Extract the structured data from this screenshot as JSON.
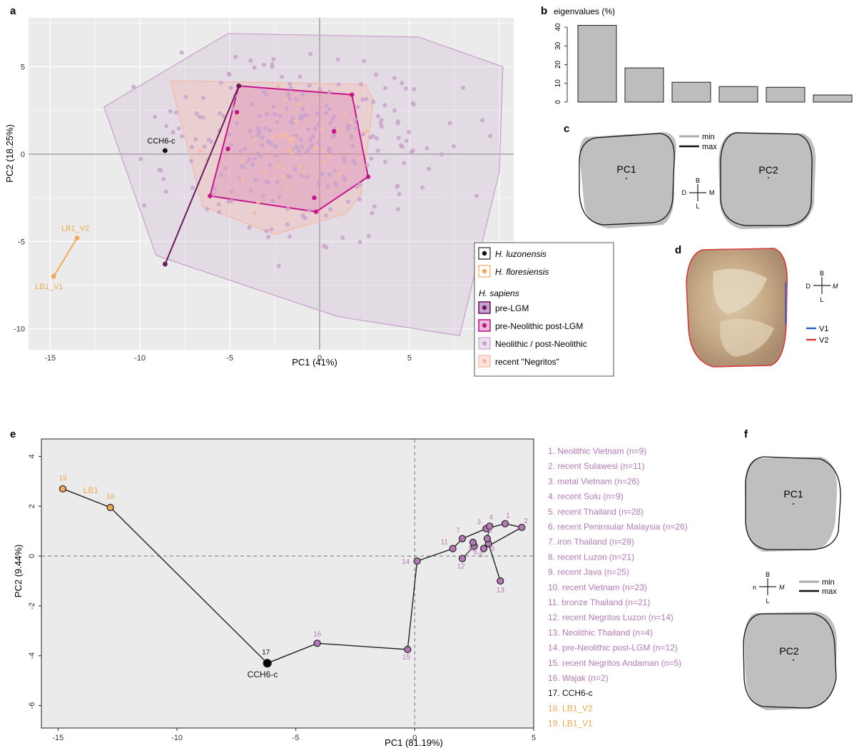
{
  "panel_letters": {
    "a": "a",
    "b": "b",
    "c": "c",
    "d": "d",
    "e": "e",
    "f": "f"
  },
  "colors": {
    "luzonensis": "#111111",
    "floresiensis": "#f0a955",
    "pre_lgm": "#6b1b5e",
    "post_lgm": "#c8158c",
    "neolithic": "#c9a3cd",
    "negritos": "#f3b9a9",
    "e_purple": "#b57ab5",
    "v1": "#2c5fc9",
    "v2": "#d63a3a"
  },
  "chart_data": [
    {
      "id": "a",
      "type": "scatter",
      "xlabel": "PC1 (41%)",
      "ylabel": "PC2 (18.25%)",
      "xticks": [
        -15,
        -10,
        -5,
        0,
        5
      ],
      "xtick_labels": [
        "-15",
        "-10",
        "-5",
        "0",
        "5"
      ],
      "yticks": [
        -10,
        -5,
        0,
        5
      ],
      "ytick_labels": [
        "-10",
        "-5",
        "0",
        "5"
      ],
      "xlim": [
        -16.2,
        10.8
      ],
      "ylim": [
        -11.2,
        7.8
      ],
      "grid": true,
      "legend": {
        "position": "bottom-right",
        "entries": [
          "H. luzonensis",
          "H. floresiensis"
        ],
        "group_title": "H. sapiens",
        "group_entries": [
          "pre-LGM",
          "pre-Neolithic post-LGM",
          "Neolithic / post-Neolithic",
          "recent \"Negritos\""
        ]
      },
      "labels": {
        "cch6": "CCH6-c",
        "lb1_v2": "LB1_V2",
        "lb1_v1": "LB1_V1"
      },
      "points": {
        "luzonensis": [
          [
            -8.6,
            0.2
          ]
        ],
        "floresiensis": [
          [
            -13.5,
            -4.8
          ],
          [
            -14.8,
            -7.0
          ]
        ],
        "pre_lgm": [
          [
            -8.6,
            -6.3
          ],
          [
            -4.5,
            3.9
          ]
        ],
        "post_lgm": [
          [
            -4.5,
            3.9
          ],
          [
            1.8,
            3.4
          ],
          [
            2.7,
            -1.3
          ],
          [
            -0.2,
            -3.3
          ],
          [
            -6.1,
            -2.4
          ],
          [
            0.8,
            1.3
          ],
          [
            -0.3,
            -2.5
          ],
          [
            -4.6,
            2.4
          ],
          [
            -5.1,
            0.3
          ]
        ]
      },
      "hulls": {
        "neolithic": [
          [
            -5.1,
            6.9
          ],
          [
            5.5,
            6.7
          ],
          [
            10.2,
            5.0
          ],
          [
            10.0,
            -1.0
          ],
          [
            7.8,
            -10.4
          ],
          [
            1.0,
            -9.3
          ],
          [
            -9.1,
            -5.8
          ],
          [
            -12.0,
            2.7
          ]
        ],
        "negritos": [
          [
            -8.3,
            4.2
          ],
          [
            2.5,
            4.0
          ],
          [
            3.0,
            3.1
          ],
          [
            2.3,
            -2.3
          ],
          [
            1.5,
            -3.4
          ],
          [
            -2.5,
            -4.6
          ],
          [
            -6.5,
            -3.0
          ]
        ],
        "post_lgm": [
          [
            -4.5,
            3.9
          ],
          [
            1.8,
            3.4
          ],
          [
            2.7,
            -1.3
          ],
          [
            -0.2,
            -3.3
          ],
          [
            -6.1,
            -2.4
          ]
        ]
      }
    },
    {
      "id": "b",
      "type": "bar",
      "title": "eigenvalues (%)",
      "values": [
        41,
        18.25,
        10.6,
        8.3,
        7.9,
        3.8
      ],
      "yticks": [
        0,
        10,
        20,
        30,
        40
      ],
      "ytick_labels": [
        "0",
        "10",
        "20",
        "30",
        "40"
      ],
      "ylim": [
        0,
        45
      ]
    },
    {
      "id": "e",
      "type": "line",
      "xlabel": "PC1 (81.19%)",
      "ylabel": "PC2 (9.44%)",
      "xticks": [
        -15,
        -10,
        -5,
        0,
        5
      ],
      "xtick_labels": [
        "-15",
        "-10",
        "-5",
        "0",
        "5"
      ],
      "yticks": [
        -6,
        -4,
        -2,
        0,
        2,
        4
      ],
      "ytick_labels": [
        "-6",
        "-4",
        "-2",
        "0",
        "2",
        "4"
      ],
      "xlim": [
        -15.7,
        5.0
      ],
      "ylim": [
        -6.9,
        4.7
      ],
      "reference_lines": {
        "x": 0,
        "y": 0
      },
      "group_label": "LB1",
      "cch6_label": "CCH6-c",
      "points": [
        {
          "n": "1",
          "x": 3.8,
          "y": 1.3
        },
        {
          "n": "2",
          "x": 4.5,
          "y": 1.15
        },
        {
          "n": "3",
          "x": 3.0,
          "y": 1.1
        },
        {
          "n": "4",
          "x": 3.15,
          "y": 1.2
        },
        {
          "n": "5",
          "x": 3.1,
          "y": 0.5
        },
        {
          "n": "6",
          "x": 2.5,
          "y": 0.4
        },
        {
          "n": "7",
          "x": 2.0,
          "y": 0.7
        },
        {
          "n": "8",
          "x": 2.9,
          "y": 0.3
        },
        {
          "n": "9",
          "x": 3.05,
          "y": 0.7
        },
        {
          "n": "10",
          "x": 2.45,
          "y": 0.55
        },
        {
          "n": "11",
          "x": 1.6,
          "y": 0.3
        },
        {
          "n": "12",
          "x": 2.0,
          "y": -0.1
        },
        {
          "n": "13",
          "x": 3.6,
          "y": -1.0
        },
        {
          "n": "14",
          "x": 0.1,
          "y": -0.2
        },
        {
          "n": "15",
          "x": -0.3,
          "y": -3.75
        },
        {
          "n": "16",
          "x": -4.1,
          "y": -3.5
        },
        {
          "n": "17",
          "x": -6.2,
          "y": -4.3
        },
        {
          "n": "18",
          "x": -12.8,
          "y": 1.95
        },
        {
          "n": "19",
          "x": -14.8,
          "y": 2.7
        }
      ],
      "path": [
        "19",
        "18",
        "17",
        "16",
        "15",
        "14",
        "11",
        "7",
        "3",
        "1",
        "2",
        "8",
        "5",
        "13"
      ],
      "legend_entries": [
        "1. Neolithic Vietnam (n=9)",
        "2. recent Sulawesi (n=11)",
        "3. metal Vietnam (n=26)",
        "4. recent Sulu (n=9)",
        "5. recent Thailand (n=28)",
        "6. recent Peninsular Malaysia (n=26)",
        "7. iron Thailand (n=29)",
        "8. recent Luzon (n=21)",
        "9. recent Java (n=25)",
        "10. recent Vietnam (n=23)",
        "11. bronze Thailand (n=21)",
        "12. recent Negritos Luzon (n=14)",
        "13. Neolithic Thailand (n=4)",
        "14. pre-Neolithic post-LGM (n=12)",
        "15. recent Negritos Andaman (n=5)",
        "16. Wajak (n=2)",
        "17. CCH6-c",
        "18. LB1_V2",
        "19. LB1_V1"
      ]
    }
  ],
  "panel_c": {
    "pc1": "PC1",
    "pc2": "PC2",
    "min": "min",
    "max": "max",
    "compass": {
      "b": "B",
      "l": "L",
      "d": "D",
      "m": "M"
    }
  },
  "panel_d": {
    "compass": {
      "b": "B",
      "l": "L",
      "d": "D",
      "m": "M"
    },
    "v1": "V1",
    "v2": "V2"
  },
  "panel_f": {
    "pc1": "PC1",
    "pc2": "PC2",
    "min": "min",
    "max": "max",
    "compass": {
      "b": "B",
      "l": "L",
      "d": "n",
      "m": "M"
    }
  }
}
